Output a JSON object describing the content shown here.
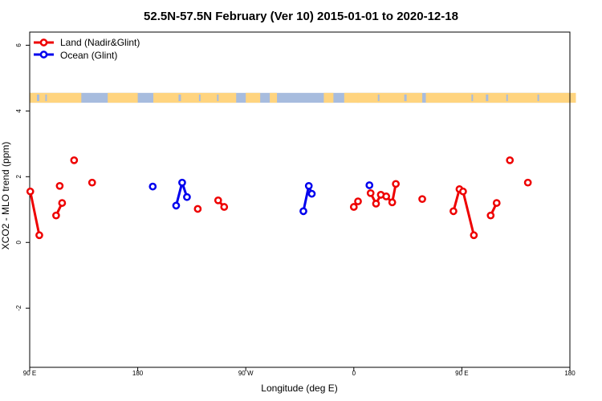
{
  "chart_data": {
    "type": "line",
    "title": "52.5N-57.5N February (Ver 10)   2015-01-01 to 2020-12-18",
    "xlabel": "Longitude (deg E)",
    "ylabel": "XCO2 - MLO trend (ppm)",
    "xlim": [
      90,
      540
    ],
    "ylim": [
      -3.8,
      6.4
    ],
    "x_ticks": [
      {
        "value": 90,
        "label": "90 E"
      },
      {
        "value": 180,
        "label": "180"
      },
      {
        "value": 270,
        "label": "90 W"
      },
      {
        "value": 360,
        "label": "0"
      },
      {
        "value": 450,
        "label": "90 E"
      },
      {
        "value": 540,
        "label": "180"
      }
    ],
    "y_ticks": [
      {
        "value": -2,
        "label": "-2"
      },
      {
        "value": 0,
        "label": "0"
      },
      {
        "value": 2,
        "label": "2"
      },
      {
        "value": 4,
        "label": "4"
      },
      {
        "value": 6,
        "label": "6"
      }
    ],
    "legend": {
      "placement": "top-left"
    },
    "landmask": {
      "ymin": 4.25,
      "ymax": 4.55,
      "land_color": "#FFD47F",
      "ocean_color": "#A7BCDE"
    },
    "series": [
      {
        "name": "Land (Nadir&Glint)",
        "color": "#EE0000",
        "segments": [
          [
            [
              90.5,
              1.55
            ],
            [
              98,
              0.22
            ]
          ],
          [
            [
              112,
              0.82
            ],
            [
              117,
              1.2
            ]
          ],
          [
            [
              127,
              2.5
            ]
          ],
          [
            [
              142,
              1.82
            ]
          ],
          [
            [
              115,
              1.72
            ]
          ],
          [
            [
              230,
              1.02
            ]
          ],
          [
            [
              247,
              1.28
            ],
            [
              252,
              1.08
            ]
          ],
          [
            [
              360,
              1.08
            ],
            [
              363.5,
              1.25
            ]
          ],
          [
            [
              374,
              1.5
            ],
            [
              378.5,
              1.18
            ],
            [
              382.5,
              1.45
            ],
            [
              387,
              1.4
            ],
            [
              392,
              1.22
            ],
            [
              395,
              1.78
            ]
          ],
          [
            [
              417,
              1.32
            ]
          ],
          [
            [
              443,
              0.95
            ],
            [
              448,
              1.62
            ],
            [
              451,
              1.55
            ],
            [
              460,
              0.22
            ]
          ],
          [
            [
              474,
              0.82
            ],
            [
              479,
              1.2
            ]
          ],
          [
            [
              490,
              2.5
            ]
          ],
          [
            [
              505,
              1.82
            ]
          ]
        ]
      },
      {
        "name": "Ocean (Glint)",
        "color": "#0000EE",
        "segments": [
          [
            [
              192.5,
              1.7
            ]
          ],
          [
            [
              212,
              1.12
            ],
            [
              217,
              1.82
            ],
            [
              221,
              1.38
            ]
          ],
          [
            [
              318,
              0.95
            ],
            [
              322.5,
              1.72
            ],
            [
              325,
              1.48
            ]
          ],
          [
            [
              373,
              1.74
            ]
          ]
        ]
      }
    ]
  }
}
